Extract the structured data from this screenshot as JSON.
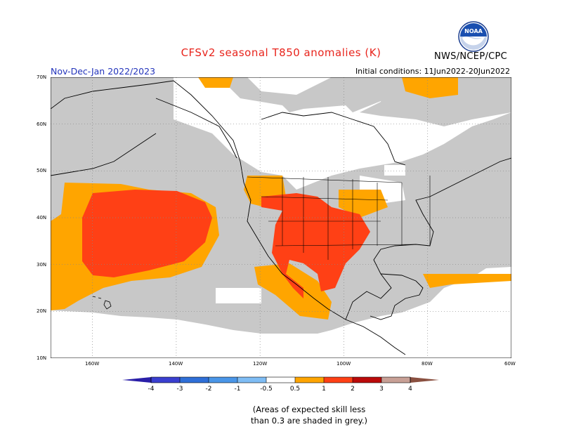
{
  "title": "CFSv2 seasonal T850 anomalies (K)",
  "agency": "NWS/NCEP/CPC",
  "season": "Nov-Dec-Jan 2022/2023",
  "initial_conditions": "Initial conditions: 11Jun2022-20Jun2022",
  "logo_text": "NOAA",
  "note_line1": "(Areas of expected skill less",
  "note_line2": "than 0.3 are shaded in grey.)",
  "lat_labels": [
    "70N",
    "60N",
    "50N",
    "40N",
    "30N",
    "20N",
    "10N"
  ],
  "lon_labels": [
    "160W",
    "140W",
    "120W",
    "100W",
    "80W",
    "60W"
  ],
  "colorbar": {
    "labels": [
      "-4",
      "-3",
      "-2",
      "-1",
      "-0.5",
      "0.5",
      "1",
      "2",
      "3",
      "4"
    ],
    "colors": [
      "#2a1fa8",
      "#3a3fd0",
      "#2f6fd8",
      "#4a96e8",
      "#7fbdf5",
      "#ffffff",
      "#ffa500",
      "#ff4015",
      "#bb0a0a",
      "#c8a096",
      "#8a5040"
    ]
  },
  "colors": {
    "grey": "#c8c8c8",
    "orange": "#ffa500",
    "red": "#ff4015",
    "title_red": "#e8241c",
    "season_blue": "#2233bb"
  },
  "map": {
    "lon_range": [
      -170,
      -60
    ],
    "lat_range": [
      10,
      70
    ]
  }
}
